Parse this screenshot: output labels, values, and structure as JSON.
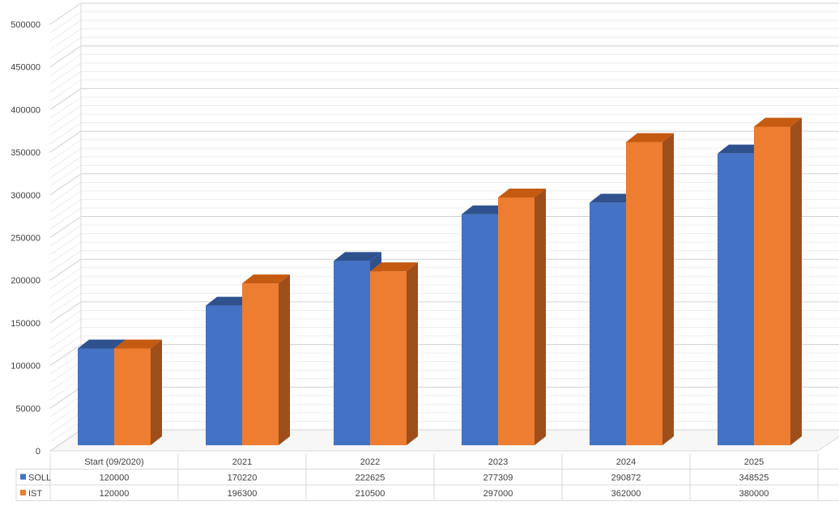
{
  "chart_data": {
    "type": "bar",
    "title": "",
    "xlabel": "",
    "ylabel": "",
    "categories": [
      "Start (09/2020)",
      "2021",
      "2022",
      "2023",
      "2024",
      "2025"
    ],
    "series": [
      {
        "name": "SOLL",
        "color": "#4472C4",
        "side_color": "#2F528F",
        "top_color": "#2F528F",
        "values": [
          120000,
          170220,
          222625,
          277309,
          290872,
          348525
        ]
      },
      {
        "name": "IST",
        "color": "#ED7D31",
        "side_color": "#9E4E1B",
        "top_color": "#C55A11",
        "values": [
          120000,
          196300,
          210500,
          297000,
          362000,
          380000
        ]
      }
    ],
    "ylim": [
      0,
      500000
    ],
    "yticks": [
      0,
      50000,
      100000,
      150000,
      200000,
      250000,
      300000,
      350000,
      400000,
      450000,
      500000
    ],
    "ytick_labels": [
      "0",
      "50000",
      "100000",
      "150000",
      "200000",
      "250000",
      "300000",
      "350000",
      "400000",
      "450000",
      "500000"
    ],
    "grid": true,
    "legend": "data-table",
    "data_table": {
      "rows": [
        {
          "label": "SOLL",
          "cells": [
            "120000",
            "170220",
            "222625",
            "277309",
            "290872",
            "348525"
          ]
        },
        {
          "label": "IST",
          "cells": [
            "120000",
            "196300",
            "210500",
            "297000",
            "362000",
            "380000"
          ]
        }
      ]
    }
  }
}
